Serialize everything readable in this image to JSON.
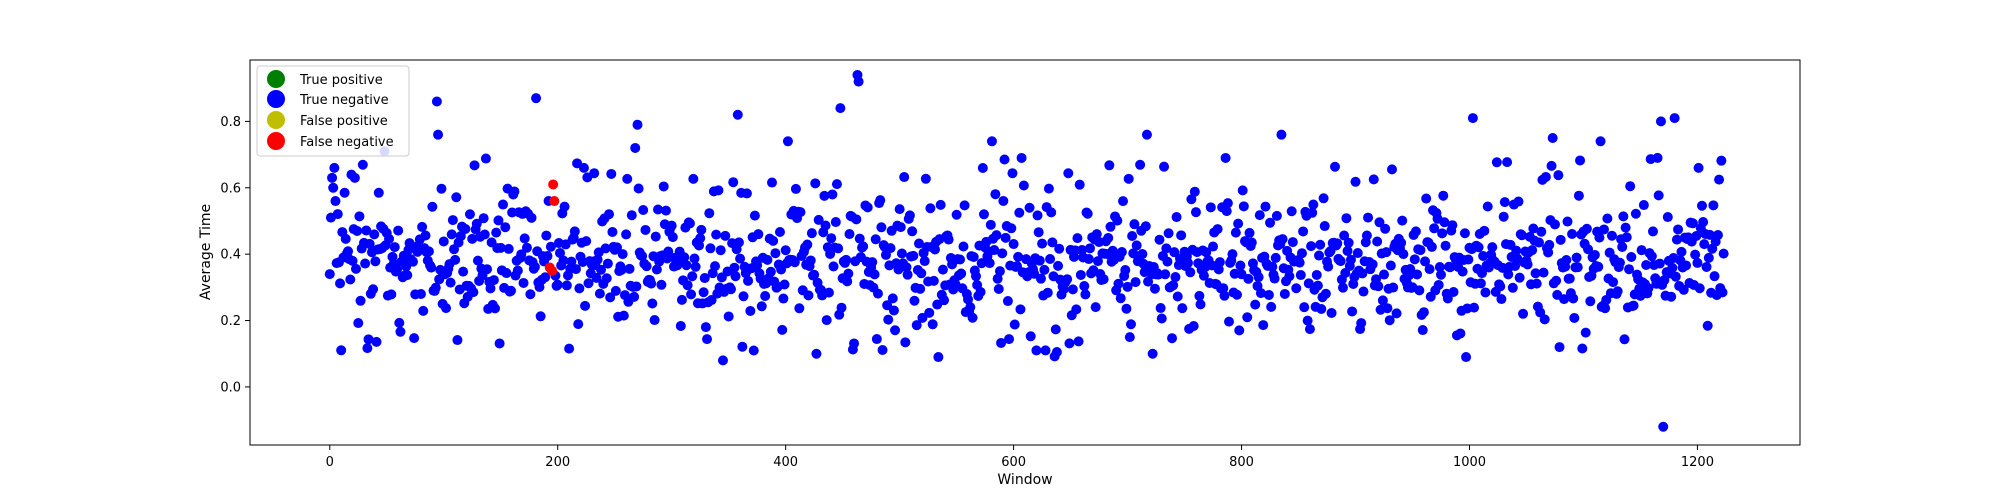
{
  "chart_data": {
    "type": "scatter",
    "title": "",
    "xlabel": "Window",
    "ylabel": "Average Time",
    "xlim": [
      -70,
      1290
    ],
    "ylim": [
      -0.175,
      0.985
    ],
    "xticks": [
      0,
      200,
      400,
      600,
      800,
      1000,
      1200
    ],
    "yticks": [
      0.0,
      0.2,
      0.4,
      0.6,
      0.8
    ],
    "ytick_labels": [
      "0.0",
      "0.2",
      "0.4",
      "0.6",
      "0.8"
    ],
    "grid": false,
    "legend": {
      "placement": "top-left",
      "entries": [
        {
          "label": "True positive",
          "color": "#008000"
        },
        {
          "label": "True negative",
          "color": "#0000ff"
        },
        {
          "label": "False positive",
          "color": "#bfbf00"
        },
        {
          "label": "False negative",
          "color": "#ff0000"
        }
      ]
    },
    "series": [
      {
        "name": "True negative",
        "color": "#0000ff",
        "n_points": 1224,
        "x_range": [
          0,
          1223
        ],
        "typical_range": [
          0.15,
          0.7
        ],
        "center": 0.37,
        "highlighted": [
          {
            "x": 0,
            "y": 0.34
          },
          {
            "x": 1,
            "y": 0.51
          },
          {
            "x": 2,
            "y": 0.63
          },
          {
            "x": 3,
            "y": 0.6
          },
          {
            "x": 4,
            "y": 0.66
          },
          {
            "x": 5,
            "y": 0.56
          },
          {
            "x": 48,
            "y": 0.71
          },
          {
            "x": 94,
            "y": 0.86
          },
          {
            "x": 95,
            "y": 0.76
          },
          {
            "x": 181,
            "y": 0.87
          },
          {
            "x": 223,
            "y": 0.66
          },
          {
            "x": 268,
            "y": 0.72
          },
          {
            "x": 270,
            "y": 0.79
          },
          {
            "x": 345,
            "y": 0.08
          },
          {
            "x": 358,
            "y": 0.82
          },
          {
            "x": 402,
            "y": 0.74
          },
          {
            "x": 427,
            "y": 0.1
          },
          {
            "x": 448,
            "y": 0.84
          },
          {
            "x": 463,
            "y": 0.94
          },
          {
            "x": 464,
            "y": 0.92
          },
          {
            "x": 534,
            "y": 0.09
          },
          {
            "x": 581,
            "y": 0.74
          },
          {
            "x": 620,
            "y": 0.11
          },
          {
            "x": 628,
            "y": 0.11
          },
          {
            "x": 717,
            "y": 0.76
          },
          {
            "x": 722,
            "y": 0.1
          },
          {
            "x": 835,
            "y": 0.76
          },
          {
            "x": 997,
            "y": 0.09
          },
          {
            "x": 1003,
            "y": 0.81
          },
          {
            "x": 1073,
            "y": 0.75
          },
          {
            "x": 1079,
            "y": 0.12
          },
          {
            "x": 1115,
            "y": 0.74
          },
          {
            "x": 1165,
            "y": 0.69
          },
          {
            "x": 1168,
            "y": 0.8
          },
          {
            "x": 1170,
            "y": -0.12
          },
          {
            "x": 1180,
            "y": 0.81
          },
          {
            "x": 1201,
            "y": 0.66
          }
        ]
      },
      {
        "name": "False negative",
        "color": "#ff0000",
        "points": [
          {
            "x": 193,
            "y": 0.36
          },
          {
            "x": 195,
            "y": 0.35
          },
          {
            "x": 196,
            "y": 0.61
          },
          {
            "x": 197,
            "y": 0.56
          }
        ]
      }
    ]
  }
}
